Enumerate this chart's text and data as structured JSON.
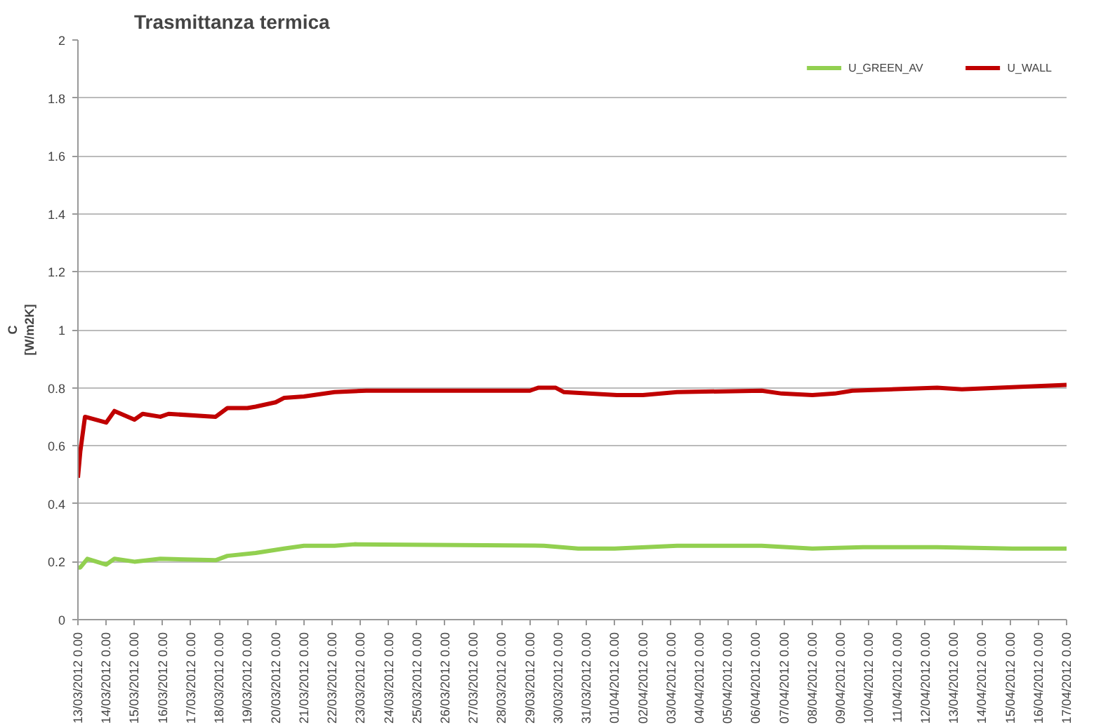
{
  "chart_data": {
    "type": "line",
    "title": "Trasmittanza termica",
    "ylabel": "C\n[W/m2K]",
    "ylim": [
      0,
      2
    ],
    "yticks": [
      0,
      0.2,
      0.4,
      0.6,
      0.8,
      1,
      1.2,
      1.4,
      1.6,
      1.8,
      2
    ],
    "xlim": [
      "2012-03-13",
      "2012-04-17"
    ],
    "xticks": [
      {
        "value": "2012-03-13",
        "label": "13/03/2012 0.00"
      },
      {
        "value": "2012-03-14",
        "label": "14/03/2012 0.00"
      },
      {
        "value": "2012-03-15",
        "label": "15/03/2012 0.00"
      },
      {
        "value": "2012-03-16",
        "label": "16/03/2012 0.00"
      },
      {
        "value": "2012-03-17",
        "label": "17/03/2012 0.00"
      },
      {
        "value": "2012-03-18",
        "label": "18/03/2012 0.00"
      },
      {
        "value": "2012-03-19",
        "label": "19/03/2012 0.00"
      },
      {
        "value": "2012-03-20",
        "label": "20/03/2012 0.00"
      },
      {
        "value": "2012-03-21",
        "label": "21/03/2012 0.00"
      },
      {
        "value": "2012-03-22",
        "label": "22/03/2012 0.00"
      },
      {
        "value": "2012-03-23",
        "label": "23/03/2012 0.00"
      },
      {
        "value": "2012-03-24",
        "label": "24/03/2012 0.00"
      },
      {
        "value": "2012-03-25",
        "label": "25/03/2012 0.00"
      },
      {
        "value": "2012-03-26",
        "label": "26/03/2012 0.00"
      },
      {
        "value": "2012-03-27",
        "label": "27/03/2012 0.00"
      },
      {
        "value": "2012-03-28",
        "label": "28/03/2012 0.00"
      },
      {
        "value": "2012-03-29",
        "label": "29/03/2012 0.00"
      },
      {
        "value": "2012-03-30",
        "label": "30/03/2012 0.00"
      },
      {
        "value": "2012-03-31",
        "label": "31/03/2012 0.00"
      },
      {
        "value": "2012-04-01",
        "label": "01/04/2012 0.00"
      },
      {
        "value": "2012-04-02",
        "label": "02/04/2012 0.00"
      },
      {
        "value": "2012-04-03",
        "label": "03/04/2012 0.00"
      },
      {
        "value": "2012-04-04",
        "label": "04/04/2012 0.00"
      },
      {
        "value": "2012-04-05",
        "label": "05/04/2012 0.00"
      },
      {
        "value": "2012-04-06",
        "label": "06/04/2012 0.00"
      },
      {
        "value": "2012-04-07",
        "label": "07/04/2012 0.00"
      },
      {
        "value": "2012-04-08",
        "label": "08/04/2012 0.00"
      },
      {
        "value": "2012-04-09",
        "label": "09/04/2012 0.00"
      },
      {
        "value": "2012-04-10",
        "label": "10/04/2012 0.00"
      },
      {
        "value": "2012-04-11",
        "label": "11/04/2012 0.00"
      },
      {
        "value": "2012-04-12",
        "label": "12/04/2012 0.00"
      },
      {
        "value": "2012-04-13",
        "label": "13/04/2012 0.00"
      },
      {
        "value": "2012-04-14",
        "label": "14/04/2012 0.00"
      },
      {
        "value": "2012-04-15",
        "label": "15/04/2012 0.00"
      },
      {
        "value": "2012-04-16",
        "label": "16/04/2012 0.00"
      },
      {
        "value": "2012-04-17",
        "label": "17/04/2012 0.00"
      }
    ],
    "grid": "y",
    "legend": "top right",
    "marker": "none",
    "line_style": "solid",
    "series": [
      {
        "name": "U_GREEN_AV",
        "color": "#92d050",
        "x": [
          "2012-03-13T00:00",
          "2012-03-13T02:00",
          "2012-03-13T08:00",
          "2012-03-14T00:00",
          "2012-03-14T07:00",
          "2012-03-15T00:00",
          "2012-03-15T22:00",
          "2012-03-17T21:00",
          "2012-03-18T07:00",
          "2012-03-19T07:00",
          "2012-03-20T07:00",
          "2012-03-21T00:00",
          "2012-03-22T02:00",
          "2012-03-22T19:00",
          "2012-03-29T12:00",
          "2012-03-30T17:00",
          "2012-04-01T00:00",
          "2012-04-03T05:00",
          "2012-04-06T05:00",
          "2012-04-08T00:00",
          "2012-04-09T19:00",
          "2012-04-12T10:00",
          "2012-04-15T02:00",
          "2012-04-17T00:00"
        ],
        "values": [
          0.18,
          0.18,
          0.21,
          0.19,
          0.21,
          0.2,
          0.21,
          0.205,
          0.22,
          0.23,
          0.245,
          0.255,
          0.255,
          0.26,
          0.255,
          0.245,
          0.245,
          0.255,
          0.255,
          0.245,
          0.25,
          0.25,
          0.245,
          0.245
        ]
      },
      {
        "name": "U_WALL",
        "color": "#c00000",
        "x": [
          "2012-03-13T00:00",
          "2012-03-13T02:00",
          "2012-03-13T06:00",
          "2012-03-14T00:00",
          "2012-03-14T07:00",
          "2012-03-15T00:00",
          "2012-03-15T07:00",
          "2012-03-15T22:00",
          "2012-03-16T05:00",
          "2012-03-17T21:00",
          "2012-03-18T07:00",
          "2012-03-19T00:00",
          "2012-03-19T07:00",
          "2012-03-20T00:00",
          "2012-03-20T07:00",
          "2012-03-21T00:00",
          "2012-03-22T02:00",
          "2012-03-23T05:00",
          "2012-03-29T00:00",
          "2012-03-29T07:00",
          "2012-03-29T22:00",
          "2012-03-30T05:00",
          "2012-04-01T02:00",
          "2012-04-02T00:00",
          "2012-04-03T05:00",
          "2012-04-06T05:00",
          "2012-04-06T22:00",
          "2012-04-08T00:00",
          "2012-04-08T19:00",
          "2012-04-09T10:00",
          "2012-04-12T10:00",
          "2012-04-13T07:00",
          "2012-04-17T00:00"
        ],
        "values": [
          0.49,
          0.58,
          0.7,
          0.68,
          0.72,
          0.69,
          0.71,
          0.7,
          0.71,
          0.7,
          0.73,
          0.73,
          0.735,
          0.75,
          0.765,
          0.77,
          0.785,
          0.79,
          0.79,
          0.8,
          0.8,
          0.785,
          0.775,
          0.775,
          0.785,
          0.79,
          0.78,
          0.775,
          0.78,
          0.79,
          0.8,
          0.795,
          0.81
        ]
      }
    ]
  }
}
